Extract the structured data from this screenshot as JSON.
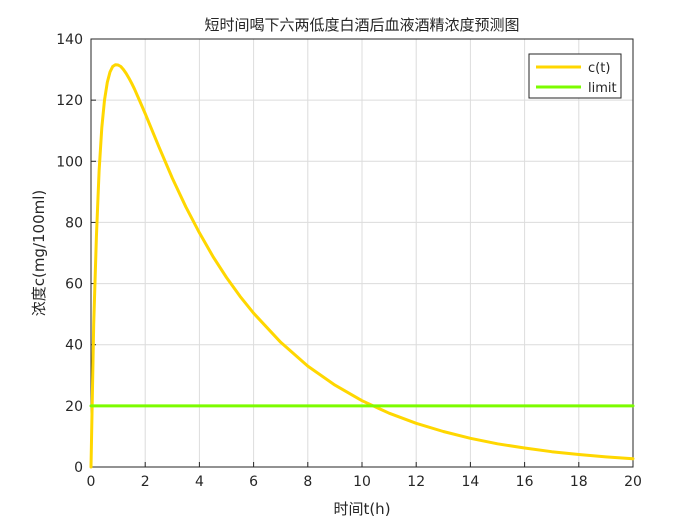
{
  "chart_data": {
    "type": "line",
    "title": "短时间喝下六两低度白酒后血液酒精浓度预测图",
    "xlabel": "时间t(h)",
    "ylabel": "浓度c(mg/100ml)",
    "xlim": [
      0,
      20
    ],
    "ylim": [
      0,
      140
    ],
    "xticks": [
      0,
      2,
      4,
      6,
      8,
      10,
      12,
      14,
      16,
      18,
      20
    ],
    "yticks": [
      0,
      20,
      40,
      60,
      80,
      100,
      120,
      140
    ],
    "grid": true,
    "legend_position": "top-right",
    "series": [
      {
        "name": "c(t)",
        "color": "#FFD700",
        "x": [
          0,
          0.1,
          0.2,
          0.3,
          0.4,
          0.5,
          0.6,
          0.7,
          0.8,
          0.9,
          1.0,
          1.1,
          1.2,
          1.3,
          1.4,
          1.5,
          1.6,
          1.8,
          2.0,
          2.5,
          3.0,
          3.5,
          4.0,
          4.5,
          5.0,
          5.5,
          6.0,
          7.0,
          8.0,
          9.0,
          10.0,
          11.0,
          12.0,
          13.0,
          14.0,
          15.0,
          16.0,
          17.0,
          18.0,
          19.0,
          20.0
        ],
        "values": [
          0,
          46.7,
          75.3,
          96.9,
          111.0,
          120.0,
          125.8,
          129.2,
          131.0,
          131.6,
          131.5,
          131.0,
          130.0,
          128.7,
          127.2,
          125.5,
          123.7,
          119.7,
          115.6,
          104.8,
          94.5,
          85.1,
          76.6,
          68.9,
          62.0,
          55.8,
          50.3,
          40.8,
          33.0,
          26.8,
          21.7,
          17.6,
          14.3,
          11.6,
          9.4,
          7.6,
          6.2,
          5.0,
          4.1,
          3.3,
          2.7
        ]
      },
      {
        "name": "limit",
        "color": "#7CFC00",
        "x": [
          0,
          20
        ],
        "values": [
          20,
          20
        ]
      }
    ]
  }
}
